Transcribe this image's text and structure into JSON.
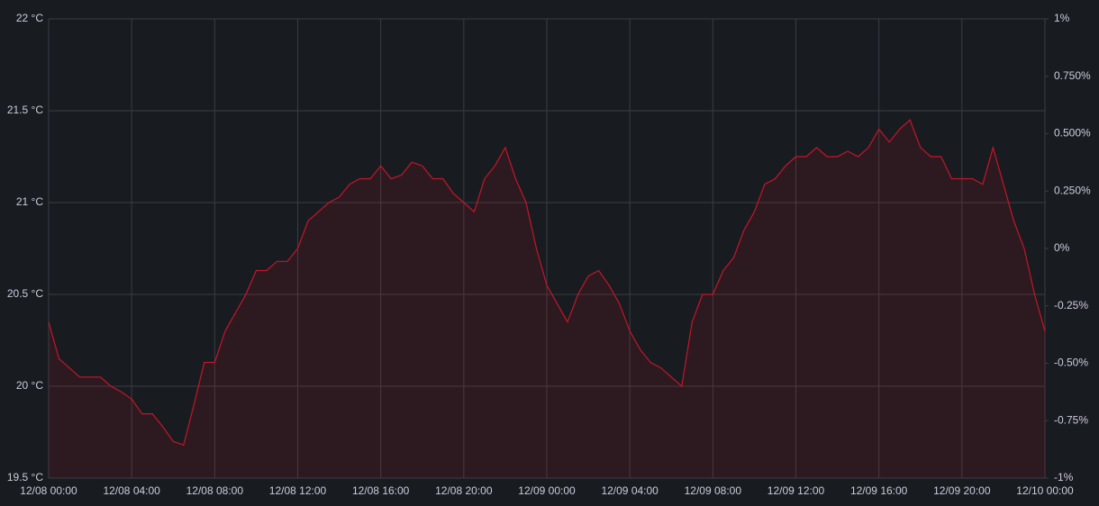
{
  "chart_data": {
    "type": "line",
    "x": [
      "12/08 00:00",
      "12/08 00:30",
      "12/08 01:00",
      "12/08 01:30",
      "12/08 02:00",
      "12/08 02:30",
      "12/08 03:00",
      "12/08 03:30",
      "12/08 04:00",
      "12/08 04:30",
      "12/08 05:00",
      "12/08 05:30",
      "12/08 06:00",
      "12/08 06:30",
      "12/08 07:00",
      "12/08 07:30",
      "12/08 08:00",
      "12/08 08:30",
      "12/08 09:00",
      "12/08 09:30",
      "12/08 10:00",
      "12/08 10:30",
      "12/08 11:00",
      "12/08 11:30",
      "12/08 12:00",
      "12/08 12:30",
      "12/08 13:00",
      "12/08 13:30",
      "12/08 14:00",
      "12/08 14:30",
      "12/08 15:00",
      "12/08 15:30",
      "12/08 16:00",
      "12/08 16:30",
      "12/08 17:00",
      "12/08 17:30",
      "12/08 18:00",
      "12/08 18:30",
      "12/08 19:00",
      "12/08 19:30",
      "12/08 20:00",
      "12/08 20:30",
      "12/08 21:00",
      "12/08 21:30",
      "12/08 22:00",
      "12/08 22:30",
      "12/08 23:00",
      "12/08 23:30",
      "12/09 00:00",
      "12/09 00:30",
      "12/09 01:00",
      "12/09 01:30",
      "12/09 02:00",
      "12/09 02:30",
      "12/09 03:00",
      "12/09 03:30",
      "12/09 04:00",
      "12/09 04:30",
      "12/09 05:00",
      "12/09 05:30",
      "12/09 06:00",
      "12/09 06:30",
      "12/09 07:00",
      "12/09 07:30",
      "12/09 08:00",
      "12/09 08:30",
      "12/09 09:00",
      "12/09 09:30",
      "12/09 10:00",
      "12/09 10:30",
      "12/09 11:00",
      "12/09 11:30",
      "12/09 12:00",
      "12/09 12:30",
      "12/09 13:00",
      "12/09 13:30",
      "12/09 14:00",
      "12/09 14:30",
      "12/09 15:00",
      "12/09 15:30",
      "12/09 16:00",
      "12/09 16:30",
      "12/09 17:00",
      "12/09 17:30",
      "12/09 18:00",
      "12/09 18:30",
      "12/09 19:00",
      "12/09 19:30",
      "12/09 20:00",
      "12/09 20:30",
      "12/09 21:00",
      "12/09 21:30",
      "12/09 22:00",
      "12/09 22:30",
      "12/09 23:00",
      "12/09 23:30",
      "12/10 00:00"
    ],
    "series": [
      {
        "color": "#c4162a",
        "values": [
          20.35,
          20.15,
          20.1,
          20.05,
          20.05,
          20.05,
          20.0,
          19.97,
          19.93,
          19.85,
          19.85,
          19.78,
          19.7,
          19.68,
          19.9,
          20.13,
          20.13,
          20.3,
          20.4,
          20.5,
          20.63,
          20.63,
          20.68,
          20.68,
          20.75,
          20.9,
          20.95,
          21.0,
          21.03,
          21.1,
          21.13,
          21.13,
          21.2,
          21.13,
          21.15,
          21.22,
          21.2,
          21.13,
          21.13,
          21.05,
          21.0,
          20.95,
          21.13,
          21.2,
          21.3,
          21.13,
          21.0,
          20.75,
          20.55,
          20.45,
          20.35,
          20.5,
          20.6,
          20.63,
          20.55,
          20.45,
          20.3,
          20.2,
          20.13,
          20.1,
          20.05,
          20.0,
          20.35,
          20.5,
          20.5,
          20.63,
          20.7,
          20.85,
          20.95,
          21.1,
          21.13,
          21.2,
          21.25,
          21.25,
          21.3,
          21.25,
          21.25,
          21.28,
          21.25,
          21.3,
          21.4,
          21.33,
          21.4,
          21.45,
          21.3,
          21.25,
          21.25,
          21.13,
          21.13,
          21.13,
          21.1,
          21.3,
          21.1,
          20.9,
          20.75,
          20.5,
          20.3
        ]
      }
    ],
    "xlim": [
      "12/08 00:00",
      "12/10 00:00"
    ],
    "xticks": [
      "12/08 00:00",
      "12/08 04:00",
      "12/08 08:00",
      "12/08 12:00",
      "12/08 16:00",
      "12/08 20:00",
      "12/09 00:00",
      "12/09 04:00",
      "12/09 08:00",
      "12/09 12:00",
      "12/09 16:00",
      "12/09 20:00",
      "12/10 00:00"
    ],
    "ylim": [
      19.5,
      22
    ],
    "yticks": [
      {
        "value": 19.5,
        "label": "19.5 °C"
      },
      {
        "value": 20,
        "label": "20 °C"
      },
      {
        "value": 20.5,
        "label": "20.5 °C"
      },
      {
        "value": 21,
        "label": "21 °C"
      },
      {
        "value": 21.5,
        "label": "21.5 °C"
      },
      {
        "value": 22,
        "label": "22 °C"
      }
    ],
    "y2lim": [
      -1,
      1
    ],
    "y2ticks": [
      {
        "value": -1,
        "label": "-1%"
      },
      {
        "value": -0.75,
        "label": "-0.75%"
      },
      {
        "value": -0.5,
        "label": "-0.50%"
      },
      {
        "value": -0.25,
        "label": "-0.25%"
      },
      {
        "value": 0,
        "label": "0%"
      },
      {
        "value": 0.25,
        "label": "0.250%"
      },
      {
        "value": 0.5,
        "label": "0.500%"
      },
      {
        "value": 0.75,
        "label": "0.750%"
      },
      {
        "value": 1,
        "label": "1%"
      }
    ],
    "grid": true
  }
}
